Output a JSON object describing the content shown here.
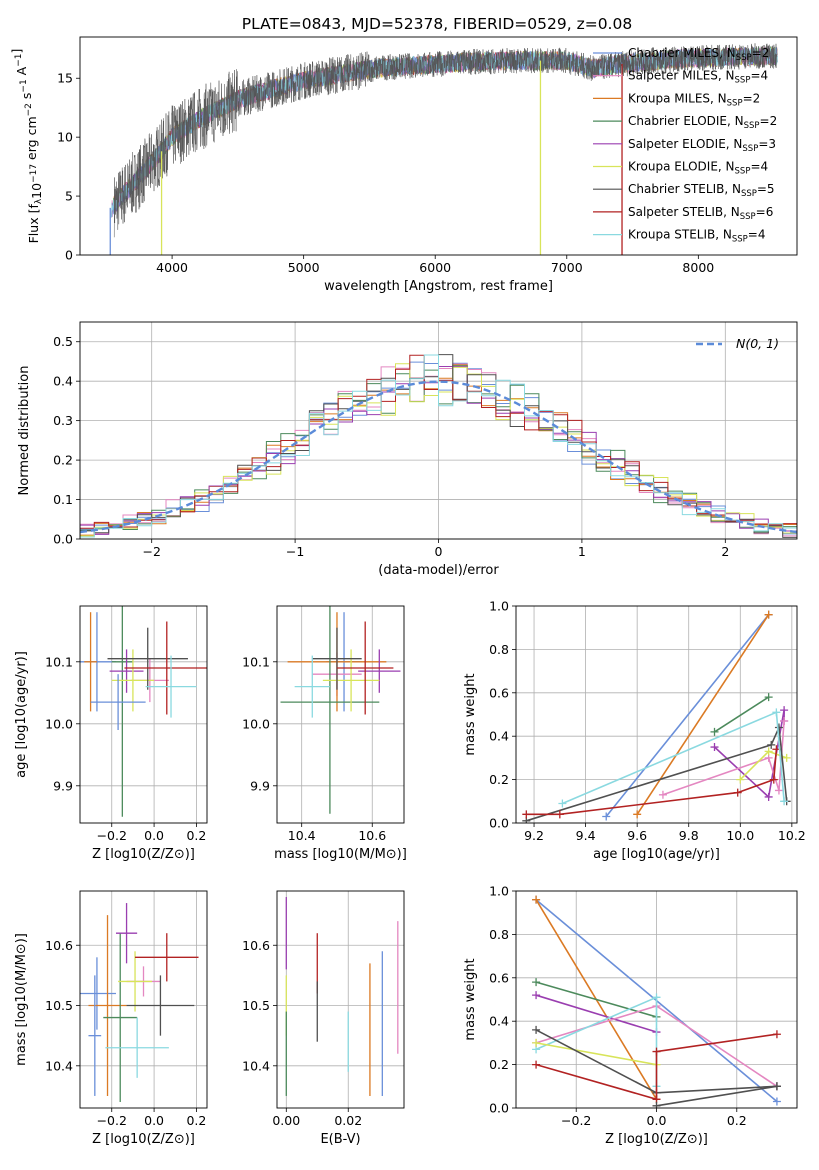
{
  "colors": {
    "Chabrier MILES": "#6a8fd9",
    "Salpeter MILES": "#e487c1",
    "Kroupa MILES": "#db7a24",
    "Chabrier ELODIE": "#4c8a5c",
    "Salpeter ELODIE": "#9a3eb0",
    "Kroupa ELODIE": "#d8e45a",
    "Chabrier STELIB": "#505050",
    "Salpeter STELIB": "#b22222",
    "Kroupa STELIB": "#8ad9e0"
  },
  "legend": [
    {
      "model": "Chabrier MILES",
      "n": "2"
    },
    {
      "model": "Salpeter MILES",
      "n": "4"
    },
    {
      "model": "Kroupa MILES",
      "n": "2"
    },
    {
      "model": "Chabrier ELODIE",
      "n": "2"
    },
    {
      "model": "Salpeter ELODIE",
      "n": "3"
    },
    {
      "model": "Kroupa ELODIE",
      "n": "4"
    },
    {
      "model": "Chabrier STELIB",
      "n": "5"
    },
    {
      "model": "Salpeter STELIB",
      "n": "6"
    },
    {
      "model": "Kroupa STELIB",
      "n": "4"
    }
  ],
  "chart_data": [
    {
      "id": "spectrum",
      "type": "line",
      "title": "PLATE=0843, MJD=52378, FIBERID=0529, z=0.08",
      "xlabel": "wavelength [Angstrom, rest frame]",
      "ylabel": "Flux [f_λ 10^-17 erg cm^-2 s^-1 A^-1]",
      "xlim": [
        3300,
        8750
      ],
      "ylim": [
        0,
        18.5
      ],
      "xticks": [
        4000,
        5000,
        6000,
        7000,
        8000
      ],
      "yticks": [
        0,
        5,
        10,
        15
      ],
      "grid": false,
      "legend_loc": "right",
      "continuum": {
        "x": [
          3540,
          3700,
          3900,
          4000,
          4200,
          4500,
          4800,
          5000,
          5300,
          5600,
          6000,
          6300,
          6600,
          7000,
          7200,
          7400,
          7800,
          8200,
          8500
        ],
        "y": [
          4,
          6,
          8.5,
          10,
          11.5,
          13.2,
          14.2,
          14.8,
          15.4,
          15.9,
          16.2,
          16.4,
          16.5,
          16.5,
          15.8,
          16.2,
          16.6,
          16.8,
          16.9
        ]
      },
      "dropouts": [
        {
          "model": "Chabrier MILES",
          "x": 3530
        },
        {
          "model": "Kroupa ELODIE",
          "x": 3920
        },
        {
          "model": "Kroupa ELODIE",
          "x": 6800
        },
        {
          "model": "Salpeter STELIB",
          "x": 7420
        }
      ]
    },
    {
      "id": "residual_hist",
      "type": "line",
      "xlabel": "(data-model)/error",
      "ylabel": "Normed distribution",
      "xlim": [
        -2.5,
        2.5
      ],
      "ylim": [
        0,
        0.55
      ],
      "xticks": [
        -2,
        -1,
        0,
        1,
        2
      ],
      "yticks": [
        0.0,
        0.1,
        0.2,
        0.3,
        0.4,
        0.5
      ],
      "grid": true,
      "legend_loc": "top-right",
      "gaussian_label": "N(0, 1)",
      "bin_width": 0.1
    },
    {
      "id": "age_vs_Z",
      "type": "scatter",
      "xlabel": "Z [log10(Z/Z⊙)]",
      "ylabel": "age [log10(age/yr)]",
      "xlim": [
        -0.35,
        0.25
      ],
      "ylim": [
        9.84,
        10.19
      ],
      "xticks": [
        "-0.2",
        "0.0",
        "0.2"
      ],
      "yticks": [
        "9.9",
        "10.0",
        "10.1"
      ],
      "points": [
        {
          "model": "Chabrier MILES",
          "x": -0.27,
          "y": 10.1,
          "xerr": 0.09,
          "yerr": 0.08
        },
        {
          "model": "Salpeter MILES",
          "x": -0.02,
          "y": 10.07,
          "xerr": 0.09,
          "yerr": 0.035
        },
        {
          "model": "Kroupa MILES",
          "x": -0.3,
          "y": 10.1,
          "xerr": 0.03,
          "yerr": 0.08
        },
        {
          "model": "Chabrier ELODIE",
          "x": -0.15,
          "y": 10.1,
          "xerr": 0.05,
          "yerr": 0.25
        },
        {
          "model": "Salpeter ELODIE",
          "x": -0.13,
          "y": 10.085,
          "xerr": 0.08,
          "yerr": 0.035
        },
        {
          "model": "Kroupa ELODIE",
          "x": -0.1,
          "y": 10.07,
          "xerr": 0.1,
          "yerr": 0.05
        },
        {
          "model": "Chabrier STELIB",
          "x": -0.03,
          "y": 10.105,
          "xerr": 0.19,
          "yerr": 0.05
        },
        {
          "model": "Salpeter STELIB",
          "x": 0.06,
          "y": 10.09,
          "xerr": 0.2,
          "yerr": 0.075
        },
        {
          "model": "Kroupa STELIB",
          "x": 0.08,
          "y": 10.06,
          "xerr": 0.12,
          "yerr": 0.05
        },
        {
          "model": "Chabrier MILES",
          "x": -0.17,
          "y": 10.035,
          "xerr": 0.13,
          "yerr": 0.045
        }
      ]
    },
    {
      "id": "age_vs_mass",
      "type": "scatter",
      "xlabel": "mass [log10(M/M⊙)]",
      "xlim": [
        10.33,
        10.69
      ],
      "ylim": [
        9.84,
        10.19
      ],
      "xticks": [
        "10.4",
        "10.6"
      ],
      "yticks": [
        "9.9",
        "10.0",
        "10.1"
      ],
      "points": [
        {
          "model": "Chabrier MILES",
          "x": 10.52,
          "y": 10.1,
          "xerr": 0.05,
          "yerr": 0.08
        },
        {
          "model": "Salpeter MILES",
          "x": 10.5,
          "y": 10.08,
          "xerr": 0.07,
          "yerr": 0.035
        },
        {
          "model": "Kroupa MILES",
          "x": 10.5,
          "y": 10.1,
          "xerr": 0.14,
          "yerr": 0.08
        },
        {
          "model": "Chabrier ELODIE",
          "x": 10.48,
          "y": 10.035,
          "xerr": 0.14,
          "yerr": 0.18
        },
        {
          "model": "Salpeter ELODIE",
          "x": 10.62,
          "y": 10.085,
          "xerr": 0.06,
          "yerr": 0.035
        },
        {
          "model": "Kroupa ELODIE",
          "x": 10.54,
          "y": 10.07,
          "xerr": 0.08,
          "yerr": 0.05
        },
        {
          "model": "Chabrier STELIB",
          "x": 10.5,
          "y": 10.105,
          "xerr": 0.07,
          "yerr": 0.05
        },
        {
          "model": "Salpeter STELIB",
          "x": 10.58,
          "y": 10.09,
          "xerr": 0.08,
          "yerr": 0.075
        },
        {
          "model": "Kroupa STELIB",
          "x": 10.43,
          "y": 10.06,
          "xerr": 0.05,
          "yerr": 0.05
        }
      ]
    },
    {
      "id": "mass_weight_vs_age",
      "type": "line",
      "xlabel": "age [log10(age/yr)]",
      "ylabel": "mass weight",
      "xlim": [
        9.13,
        10.22
      ],
      "ylim": [
        0,
        1
      ],
      "xticks": [
        "9.2",
        "9.4",
        "9.6",
        "9.8",
        "10.0",
        "10.2"
      ],
      "yticks": [
        "0.0",
        "0.2",
        "0.4",
        "0.6",
        "0.8",
        "1.0"
      ],
      "grid": true,
      "series": [
        {
          "model": "Chabrier MILES",
          "x": [
            9.48,
            10.11
          ],
          "y": [
            0.03,
            0.96
          ]
        },
        {
          "model": "Kroupa MILES",
          "x": [
            9.6,
            10.11
          ],
          "y": [
            0.04,
            0.96
          ]
        },
        {
          "model": "Chabrier ELODIE",
          "x": [
            9.9,
            10.11
          ],
          "y": [
            0.42,
            0.58
          ]
        },
        {
          "model": "Salpeter ELODIE",
          "x": [
            9.9,
            10.11,
            10.17,
            10.17
          ],
          "y": [
            0.35,
            0.12,
            0.52,
            0.47
          ]
        },
        {
          "model": "Salpeter MILES",
          "x": [
            9.7,
            10.11,
            10.15,
            10.17
          ],
          "y": [
            0.13,
            0.3,
            0.15,
            0.47
          ]
        },
        {
          "model": "Kroupa ELODIE",
          "x": [
            10.0,
            10.11,
            10.18
          ],
          "y": [
            0.2,
            0.33,
            0.3
          ]
        },
        {
          "model": "Chabrier STELIB",
          "x": [
            9.17,
            10.12,
            10.15,
            10.18
          ],
          "y": [
            0.01,
            0.36,
            0.44,
            0.1
          ]
        },
        {
          "model": "Salpeter STELIB",
          "x": [
            9.17,
            9.3,
            9.99,
            10.13,
            10.14
          ],
          "y": [
            0.04,
            0.04,
            0.14,
            0.2,
            0.34
          ]
        },
        {
          "model": "Kroupa STELIB",
          "x": [
            9.31,
            10.14,
            10.17
          ],
          "y": [
            0.09,
            0.51,
            0.1
          ]
        }
      ]
    },
    {
      "id": "mass_vs_Z",
      "type": "scatter",
      "xlabel": "Z [log10(Z/Z⊙)]",
      "ylabel": "mass [log10(M/M⊙)]",
      "xlim": [
        -0.35,
        0.25
      ],
      "ylim": [
        10.33,
        10.69
      ],
      "xticks": [
        "-0.2",
        "0.0",
        "0.2"
      ],
      "yticks": [
        "10.4",
        "10.5",
        "10.6"
      ],
      "points": [
        {
          "model": "Chabrier MILES",
          "x": -0.27,
          "y": 10.52,
          "xerr": 0.09,
          "yerr": 0.06
        },
        {
          "model": "Salpeter MILES",
          "x": -0.05,
          "y": 10.54,
          "xerr": 0.08,
          "yerr": 0.025
        },
        {
          "model": "Kroupa MILES",
          "x": -0.22,
          "y": 10.5,
          "xerr": 0.09,
          "yerr": 0.15
        },
        {
          "model": "Chabrier ELODIE",
          "x": -0.16,
          "y": 10.48,
          "xerr": 0.08,
          "yerr": 0.14
        },
        {
          "model": "Salpeter ELODIE",
          "x": -0.13,
          "y": 10.62,
          "xerr": 0.05,
          "yerr": 0.05
        },
        {
          "model": "Kroupa ELODIE",
          "x": -0.09,
          "y": 10.54,
          "xerr": 0.08,
          "yerr": 0.05
        },
        {
          "model": "Chabrier STELIB",
          "x": 0.03,
          "y": 10.5,
          "xerr": 0.16,
          "yerr": 0.05
        },
        {
          "model": "Salpeter STELIB",
          "x": 0.06,
          "y": 10.58,
          "xerr": 0.15,
          "yerr": 0.04
        },
        {
          "model": "Kroupa STELIB",
          "x": -0.08,
          "y": 10.43,
          "xerr": 0.15,
          "yerr": 0.05
        },
        {
          "model": "Chabrier MILES",
          "x": -0.28,
          "y": 10.45,
          "xerr": 0.03,
          "yerr": 0.1
        }
      ]
    },
    {
      "id": "mass_vs_EBV",
      "type": "scatter",
      "xlabel": "E(B-V)",
      "xlim": [
        -0.003,
        0.038
      ],
      "ylim": [
        10.33,
        10.69
      ],
      "xticks": [
        "0.00",
        "0.02"
      ],
      "yticks": [
        "10.4",
        "10.5",
        "10.6"
      ],
      "points": [
        {
          "model": "Salpeter ELODIE",
          "x": 0.0,
          "y": 10.62,
          "yerr": 0.06
        },
        {
          "model": "Kroupa ELODIE",
          "x": 0.0,
          "y": 10.5,
          "yerr": 0.05
        },
        {
          "model": "Chabrier ELODIE",
          "x": 0.0,
          "y": 10.42,
          "yerr": 0.07
        },
        {
          "model": "Salpeter STELIB",
          "x": 0.01,
          "y": 10.57,
          "yerr": 0.05
        },
        {
          "model": "Chabrier STELIB",
          "x": 0.01,
          "y": 10.49,
          "yerr": 0.05
        },
        {
          "model": "Kroupa STELIB",
          "x": 0.02,
          "y": 10.44,
          "yerr": 0.05
        },
        {
          "model": "Kroupa MILES",
          "x": 0.027,
          "y": 10.46,
          "yerr": 0.11
        },
        {
          "model": "Chabrier MILES",
          "x": 0.031,
          "y": 10.47,
          "yerr": 0.12
        },
        {
          "model": "Salpeter MILES",
          "x": 0.036,
          "y": 10.53,
          "yerr": 0.11
        }
      ]
    },
    {
      "id": "mass_weight_vs_Z",
      "type": "line",
      "xlabel": "Z [log10(Z/Z⊙)]",
      "ylabel": "mass weight",
      "xlim": [
        -0.35,
        0.35
      ],
      "ylim": [
        0,
        1
      ],
      "xticks": [
        "-0.2",
        "0.0",
        "0.2"
      ],
      "yticks": [
        "0.0",
        "0.2",
        "0.4",
        "0.6",
        "0.8",
        "1.0"
      ],
      "grid": true,
      "series": [
        {
          "model": "Chabrier MILES",
          "x": [
            -0.3,
            0.3
          ],
          "y": [
            0.96,
            0.03
          ]
        },
        {
          "model": "Kroupa MILES",
          "x": [
            -0.3,
            0.0
          ],
          "y": [
            0.96,
            0.04
          ]
        },
        {
          "model": "Chabrier ELODIE",
          "x": [
            -0.3,
            0.0
          ],
          "y": [
            0.58,
            0.42
          ]
        },
        {
          "model": "Salpeter ELODIE",
          "x": [
            -0.3,
            0.0
          ],
          "y": [
            0.52,
            0.35
          ]
        },
        {
          "model": "Salpeter MILES",
          "x": [
            -0.3,
            0.0,
            0.3
          ],
          "y": [
            0.3,
            0.47,
            0.1
          ]
        },
        {
          "model": "Kroupa STELIB",
          "x": [
            -0.3,
            0.0,
            0.0
          ],
          "y": [
            0.27,
            0.51,
            0.1
          ]
        },
        {
          "model": "Kroupa ELODIE",
          "x": [
            -0.3,
            0.0
          ],
          "y": [
            0.3,
            0.2
          ]
        },
        {
          "model": "Chabrier STELIB",
          "x": [
            -0.3,
            0.0,
            0.3
          ],
          "y": [
            0.36,
            0.07,
            0.1
          ]
        },
        {
          "model": "Salpeter STELIB",
          "x": [
            -0.3,
            0.0,
            0.0,
            0.3
          ],
          "y": [
            0.2,
            0.04,
            0.26,
            0.34
          ]
        },
        {
          "model": "Chabrier STELIB",
          "x": [
            0.0,
            0.3
          ],
          "y": [
            0.01,
            0.1
          ]
        }
      ]
    }
  ]
}
